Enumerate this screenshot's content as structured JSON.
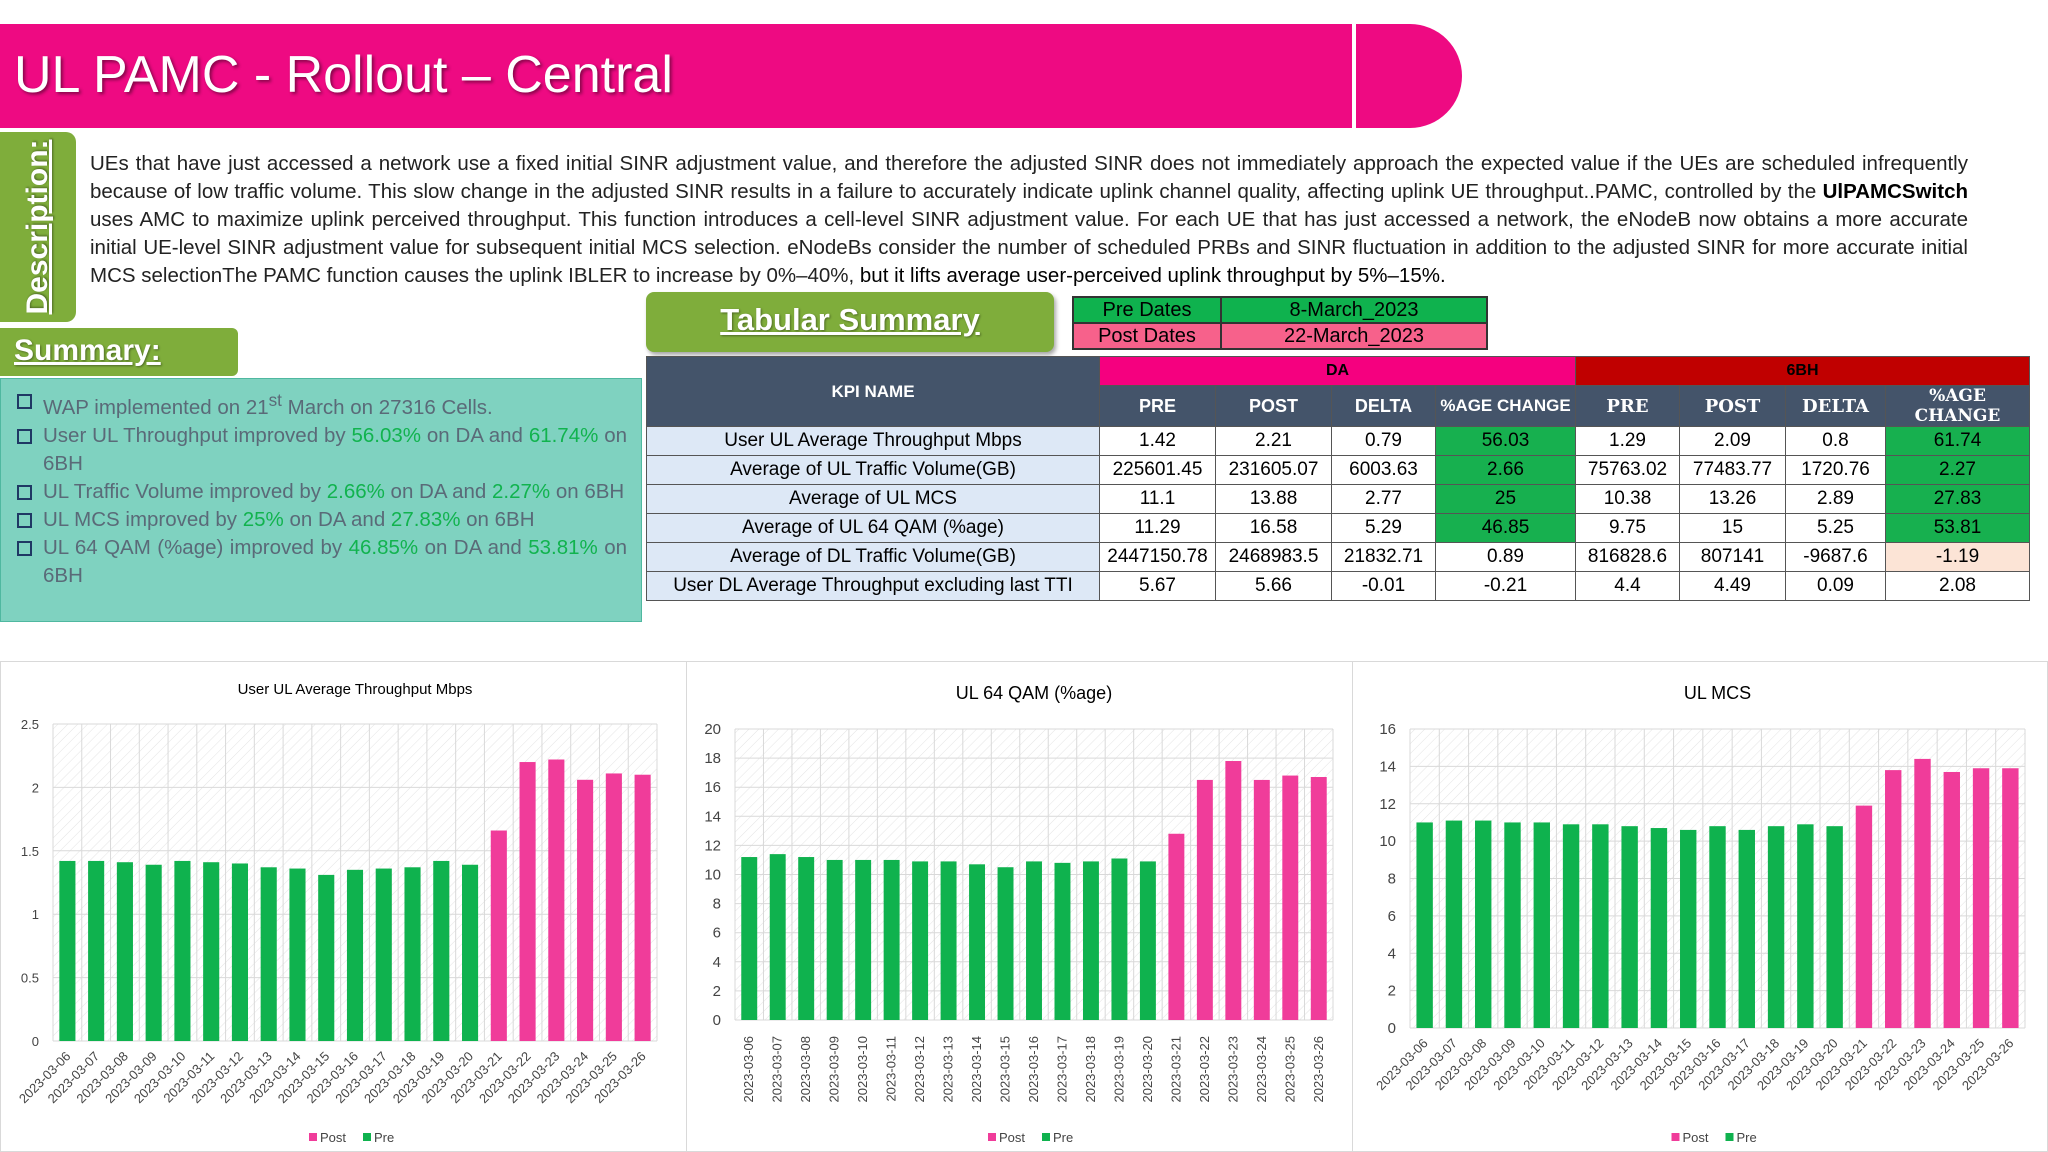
{
  "header": {
    "title": "UL PAMC  - Rollout – Central"
  },
  "description": {
    "label": "Description:",
    "part1": "UEs that have just accessed a network use a fixed initial SINR adjustment value, and therefore the adjusted SINR does not immediately approach the expected value if the UEs are scheduled infrequently because of low traffic volume. This slow change in the adjusted SINR results in a failure to accurately indicate uplink channel quality, affecting uplink UE throughput..PAMC, controlled by the ",
    "switch": "UlPAMCSwitch",
    "part2": " uses AMC to maximize uplink perceived throughput. This function introduces a cell-level SINR adjustment value. For each UE that has just accessed a network, the eNodeB now obtains a more accurate initial UE-level SINR adjustment value for subsequent initial MCS selection. eNodeBs consider the number of scheduled PRBs and SINR fluctuation in addition to the adjusted SINR for more accurate initial MCS selectionThe PAMC function causes the uplink IBLER to increase by 0%–40%, ",
    "part3": "but it lifts average user-perceived uplink throughput by 5%–15%."
  },
  "tabular_summary_label": "Tabular Summary",
  "dates": {
    "pre_label": "Pre Dates",
    "pre_value": "8-March_2023",
    "post_label": "Post Dates",
    "post_value": "22-March_2023"
  },
  "summary": {
    "label": "Summary:",
    "i1": {
      "a": "WAP implemented on 21",
      "sup": "st",
      "b": " March on 27316 Cells."
    },
    "i2": {
      "a": "User UL  Throughput improved by ",
      "v1": "56.03%",
      "b": " on DA and ",
      "v2": "61.74%",
      "c": " on 6BH"
    },
    "i3": {
      "a": "UL Traffic Volume improved by ",
      "v1": "2.66%",
      "b": " on DA  and ",
      "v2": "2.27%",
      "c": " on 6BH"
    },
    "i4": {
      "a": "UL MCS improved by ",
      "v1": "25%",
      "b": " on DA and ",
      "v2": "27.83%",
      "c": " on 6BH"
    },
    "i5": {
      "a": "UL 64 QAM (%age) improved by ",
      "v1": "46.85%",
      "b": " on DA and ",
      "v2": "53.81%",
      "c": " on 6BH"
    }
  },
  "kpi_table": {
    "kpi_name_header": "KPI NAME",
    "da_header": "DA",
    "bh_header": "6BH",
    "cols": {
      "pre": "PRE",
      "post": "POST",
      "delta": "DELTA",
      "change": "%AGE CHANGE",
      "change_6bh": "%AGE CHANGE"
    },
    "rows": [
      {
        "name": "User UL Average Throughput Mbps",
        "da_pre": "1.42",
        "da_post": "2.21",
        "da_delta": "0.79",
        "da_chg": "56.03",
        "bh_pre": "1.29",
        "bh_post": "2.09",
        "bh_delta": "0.8",
        "bh_chg": "61.74"
      },
      {
        "name": "Average of UL Traffic Volume(GB)",
        "da_pre": "225601.45",
        "da_post": "231605.07",
        "da_delta": "6003.63",
        "da_chg": "2.66",
        "bh_pre": "75763.02",
        "bh_post": "77483.77",
        "bh_delta": "1720.76",
        "bh_chg": "2.27"
      },
      {
        "name": "Average of UL MCS",
        "da_pre": "11.1",
        "da_post": "13.88",
        "da_delta": "2.77",
        "da_chg": "25",
        "bh_pre": "10.38",
        "bh_post": "13.26",
        "bh_delta": "2.89",
        "bh_chg": "27.83"
      },
      {
        "name": "Average of UL 64 QAM (%age)",
        "da_pre": "11.29",
        "da_post": "16.58",
        "da_delta": "5.29",
        "da_chg": "46.85",
        "bh_pre": "9.75",
        "bh_post": "15",
        "bh_delta": "5.25",
        "bh_chg": "53.81"
      },
      {
        "name": "Average of DL Traffic Volume(GB)",
        "da_pre": "2447150.78",
        "da_post": "2468983.5",
        "da_delta": "21832.71",
        "da_chg": "0.89",
        "bh_pre": "816828.6",
        "bh_post": "807141",
        "bh_delta": "-9687.6",
        "bh_chg": "-1.19"
      },
      {
        "name": "User DL Average Throughput excluding last TTI",
        "da_pre": "5.67",
        "da_post": "5.66",
        "da_delta": "-0.01",
        "da_chg": "-0.21",
        "bh_pre": "4.4",
        "bh_post": "4.49",
        "bh_delta": "0.09",
        "bh_chg": "2.08"
      }
    ]
  },
  "colors": {
    "brand_pink": "#ee0a82",
    "brand_green": "#7fad3b",
    "pre_bar": "#0fb24e",
    "post_bar": "#f03c9a",
    "header_navy": "#44546a"
  },
  "chart_data": [
    {
      "type": "bar",
      "title": "User UL Average Throughput Mbps",
      "categories": [
        "2023-03-06",
        "2023-03-07",
        "2023-03-08",
        "2023-03-09",
        "2023-03-10",
        "2023-03-11",
        "2023-03-12",
        "2023-03-13",
        "2023-03-14",
        "2023-03-15",
        "2023-03-16",
        "2023-03-17",
        "2023-03-18",
        "2023-03-19",
        "2023-03-20",
        "2023-03-21",
        "2023-03-22",
        "2023-03-23",
        "2023-03-24",
        "2023-03-25",
        "2023-03-26"
      ],
      "values": [
        1.42,
        1.42,
        1.41,
        1.39,
        1.42,
        1.41,
        1.4,
        1.37,
        1.36,
        1.31,
        1.35,
        1.36,
        1.37,
        1.42,
        1.39,
        1.66,
        2.2,
        2.22,
        2.06,
        2.11,
        2.1
      ],
      "series_assignment": [
        "Pre",
        "Pre",
        "Pre",
        "Pre",
        "Pre",
        "Pre",
        "Pre",
        "Pre",
        "Pre",
        "Pre",
        "Pre",
        "Pre",
        "Pre",
        "Pre",
        "Pre",
        "Post",
        "Post",
        "Post",
        "Post",
        "Post",
        "Post"
      ],
      "ylim": [
        0,
        2.5
      ],
      "yticks": [
        "0",
        "0.5",
        "1",
        "1.5",
        "2",
        "2.5"
      ],
      "legend": [
        "Post",
        "Pre"
      ],
      "legend_position": "bottom"
    },
    {
      "type": "bar",
      "title": "UL 64 QAM (%age)",
      "categories": [
        "2023-03-06",
        "2023-03-07",
        "2023-03-08",
        "2023-03-09",
        "2023-03-10",
        "2023-03-11",
        "2023-03-12",
        "2023-03-13",
        "2023-03-14",
        "2023-03-15",
        "2023-03-16",
        "2023-03-17",
        "2023-03-18",
        "2023-03-19",
        "2023-03-20",
        "2023-03-21",
        "2023-03-22",
        "2023-03-23",
        "2023-03-24",
        "2023-03-25",
        "2023-03-26"
      ],
      "values": [
        11.2,
        11.4,
        11.2,
        11.0,
        11.0,
        11.0,
        10.9,
        10.9,
        10.7,
        10.5,
        10.9,
        10.8,
        10.9,
        11.1,
        10.9,
        12.8,
        16.5,
        17.8,
        16.5,
        16.8,
        16.7
      ],
      "series_assignment": [
        "Pre",
        "Pre",
        "Pre",
        "Pre",
        "Pre",
        "Pre",
        "Pre",
        "Pre",
        "Pre",
        "Pre",
        "Pre",
        "Pre",
        "Pre",
        "Pre",
        "Pre",
        "Post",
        "Post",
        "Post",
        "Post",
        "Post",
        "Post"
      ],
      "ylim": [
        0,
        20
      ],
      "yticks": [
        "0",
        "2",
        "4",
        "6",
        "8",
        "10",
        "12",
        "14",
        "16",
        "18",
        "20"
      ],
      "legend": [
        "Post",
        "Pre"
      ],
      "legend_position": "bottom"
    },
    {
      "type": "bar",
      "title": "UL MCS",
      "categories": [
        "2023-03-06",
        "2023-03-07",
        "2023-03-08",
        "2023-03-09",
        "2023-03-10",
        "2023-03-11",
        "2023-03-12",
        "2023-03-13",
        "2023-03-14",
        "2023-03-15",
        "2023-03-16",
        "2023-03-17",
        "2023-03-18",
        "2023-03-19",
        "2023-03-20",
        "2023-03-21",
        "2023-03-22",
        "2023-03-23",
        "2023-03-24",
        "2023-03-25",
        "2023-03-26"
      ],
      "values": [
        11.0,
        11.1,
        11.1,
        11.0,
        11.0,
        10.9,
        10.9,
        10.8,
        10.7,
        10.6,
        10.8,
        10.6,
        10.8,
        10.9,
        10.8,
        11.9,
        13.8,
        14.4,
        13.7,
        13.9,
        13.9
      ],
      "series_assignment": [
        "Pre",
        "Pre",
        "Pre",
        "Pre",
        "Pre",
        "Pre",
        "Pre",
        "Pre",
        "Pre",
        "Pre",
        "Pre",
        "Pre",
        "Pre",
        "Pre",
        "Pre",
        "Post",
        "Post",
        "Post",
        "Post",
        "Post",
        "Post"
      ],
      "ylim": [
        0,
        16
      ],
      "yticks": [
        "0",
        "2",
        "4",
        "6",
        "8",
        "10",
        "12",
        "14",
        "16"
      ],
      "legend": [
        "Post",
        "Pre"
      ],
      "legend_position": "bottom"
    }
  ]
}
